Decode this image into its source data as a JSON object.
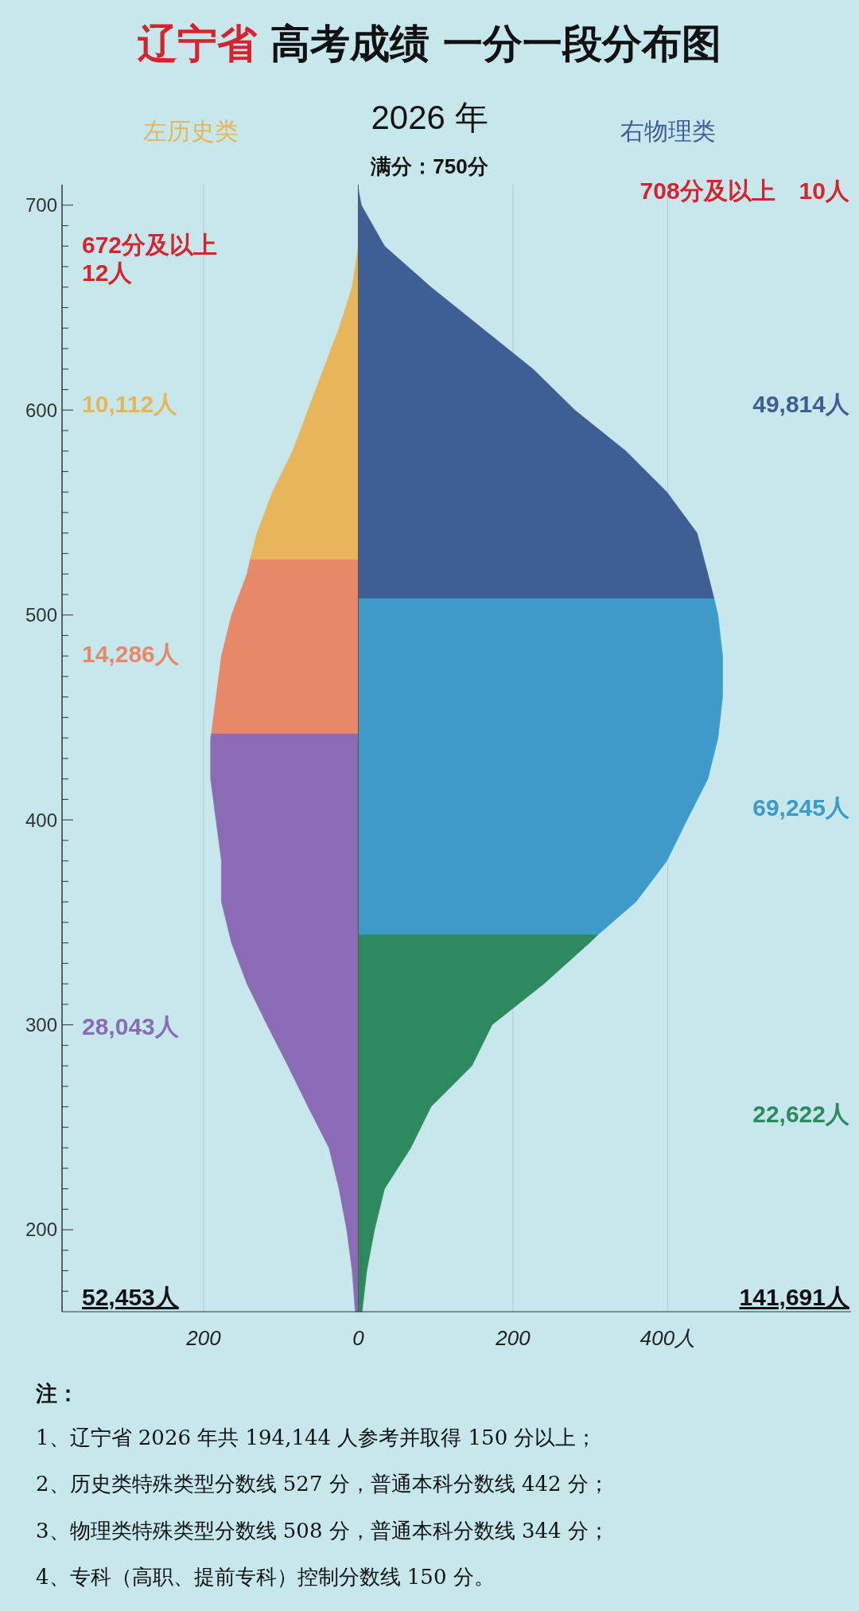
{
  "chart_data": {
    "type": "area",
    "orientation": "horizontal",
    "title": "辽宁省 高考成绩 一分一段分布图",
    "subtitle": "2026 年",
    "xlim": [
      -383,
      637
    ],
    "xticks": [
      {
        "value": -200,
        "label": "200"
      },
      0,
      200,
      {
        "value": 400,
        "label": "400人"
      }
    ],
    "ylim": [
      160,
      710
    ],
    "yticks": [
      {
        "value": 170,
        "label": null
      },
      {
        "value": 180,
        "label": null
      },
      {
        "value": 190,
        "label": null
      },
      200,
      {
        "value": 210,
        "label": null
      },
      {
        "value": 220,
        "label": null
      },
      {
        "value": 230,
        "label": null
      },
      {
        "value": 240,
        "label": null
      },
      {
        "value": 250,
        "label": null
      },
      {
        "value": 260,
        "label": null
      },
      {
        "value": 270,
        "label": null
      },
      {
        "value": 280,
        "label": null
      },
      {
        "value": 290,
        "label": null
      },
      300,
      {
        "value": 310,
        "label": null
      },
      {
        "value": 320,
        "label": null
      },
      {
        "value": 330,
        "label": null
      },
      {
        "value": 340,
        "label": null
      },
      {
        "value": 350,
        "label": null
      },
      {
        "value": 360,
        "label": null
      },
      {
        "value": 370,
        "label": null
      },
      {
        "value": 380,
        "label": null
      },
      {
        "value": 390,
        "label": null
      },
      400,
      {
        "value": 410,
        "label": null
      },
      {
        "value": 420,
        "label": null
      },
      {
        "value": 430,
        "label": null
      },
      {
        "value": 440,
        "label": null
      },
      {
        "value": 450,
        "label": null
      },
      {
        "value": 460,
        "label": null
      },
      {
        "value": 470,
        "label": null
      },
      {
        "value": 480,
        "label": null
      },
      {
        "value": 490,
        "label": null
      },
      500,
      {
        "value": 510,
        "label": null
      },
      {
        "value": 520,
        "label": null
      },
      {
        "value": 530,
        "label": null
      },
      {
        "value": 540,
        "label": null
      },
      {
        "value": 550,
        "label": null
      },
      {
        "value": 560,
        "label": null
      },
      {
        "value": 570,
        "label": null
      },
      {
        "value": 580,
        "label": null
      },
      {
        "value": 590,
        "label": null
      },
      600,
      {
        "value": 610,
        "label": null
      },
      {
        "value": 620,
        "label": null
      },
      {
        "value": 630,
        "label": null
      },
      {
        "value": 640,
        "label": null
      },
      {
        "value": 650,
        "label": null
      },
      {
        "value": 660,
        "label": null
      },
      {
        "value": 670,
        "label": null
      },
      {
        "value": 680,
        "label": null
      },
      {
        "value": 690,
        "label": null
      },
      700
    ],
    "grid": "x",
    "series": [
      {
        "color": "#e8b55a",
        "x": [
          680,
          660,
          640,
          620,
          600,
          580,
          560,
          540,
          527
        ],
        "values": [
          0,
          -8,
          -25,
          -45,
          -65,
          -85,
          -111,
          -131,
          -140
        ]
      },
      {
        "color": "#e8886a",
        "x": [
          527,
          520,
          500,
          480,
          460,
          442
        ],
        "values": [
          -140,
          -144,
          -164,
          -177,
          -184,
          -190
        ]
      },
      {
        "color": "#8a6cb5",
        "x": [
          442,
          440,
          420,
          400,
          380,
          360,
          340,
          320,
          300,
          280,
          260,
          240,
          220,
          200,
          180,
          160
        ],
        "values": [
          -190,
          -191,
          -191,
          -184,
          -177,
          -177,
          -164,
          -144,
          -118,
          -91,
          -65,
          -38,
          -25,
          -15,
          -8,
          -4
        ]
      },
      {
        "color": "#3e5f96",
        "x": [
          708,
          700,
          680,
          660,
          640,
          620,
          600,
          580,
          560,
          540,
          520,
          508
        ],
        "values": [
          0,
          4,
          34,
          94,
          160,
          226,
          280,
          346,
          399,
          438,
          452,
          460
        ]
      },
      {
        "color": "#3e9ac8",
        "x": [
          508,
          500,
          480,
          460,
          440,
          420,
          400,
          380,
          360,
          344
        ],
        "values": [
          460,
          465,
          471,
          471,
          465,
          452,
          425,
          399,
          359,
          310
        ]
      },
      {
        "color": "#2e8a5e",
        "x": [
          344,
          340,
          320,
          300,
          280,
          260,
          240,
          220,
          200,
          180,
          160
        ],
        "values": [
          310,
          299,
          240,
          173,
          147,
          94,
          68,
          34,
          21,
          11,
          5
        ]
      }
    ],
    "annotations": [
      "左历史类",
      "右物理类",
      "满分：750分",
      "672分及以上\n12人",
      "708分及以上　10人",
      "10,112人",
      "14,286人",
      "28,043人",
      "49,814人",
      "69,245人",
      "22,622人",
      "52,453人",
      "141,691人",
      "注：",
      "1、辽宁省 2026 年共 194,144 人参考并取得 150 分以上；",
      "2、历史类特殊类型分数线 527 分，普通本科分数线 442 分；",
      "3、物理类特殊类型分数线 508 分，普通本科分数线 344 分；",
      "4、专科（高职、提前专科）控制分数线 150 分。"
    ]
  }
}
